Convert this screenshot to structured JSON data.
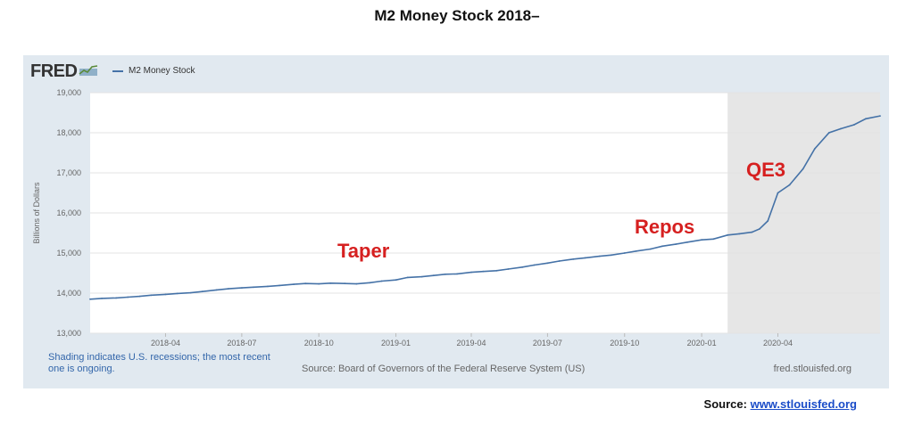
{
  "page_title": "M2 Money Stock 2018–",
  "fred": {
    "logo_text": "FRED",
    "logo_icon": "fred-chart-icon",
    "legend_label": "M2 Money Stock",
    "line_color": "#4572a7",
    "recession_color": "#e6e6e6",
    "footer_note": "Shading indicates U.S. recessions; the most recent one is ongoing.",
    "footer_source": "Source: Board of Governors of the Federal Reserve System (US)",
    "footer_url": "fred.stlouisfed.org"
  },
  "source_line": {
    "prefix": "Source:",
    "link_text": "www.stlouisfed.org"
  },
  "chart_data": {
    "type": "line",
    "title": "",
    "xlabel": "",
    "ylabel": "Billions of Dollars",
    "ylim": [
      13000,
      19000
    ],
    "yticks": [
      "13,000",
      "14,000",
      "15,000",
      "16,000",
      "17,000",
      "18,000",
      "19,000"
    ],
    "xticks": [
      "2018-04",
      "2018-07",
      "2018-10",
      "2019-01",
      "2019-04",
      "2019-07",
      "2019-10",
      "2020-01",
      "2020-04"
    ],
    "grid": true,
    "recession_shading": {
      "start": "2020-02",
      "end": "present"
    },
    "annotations": [
      {
        "text": "Taper",
        "color": "#d62020"
      },
      {
        "text": "Repos",
        "color": "#d62020"
      },
      {
        "text": "QE3",
        "color": "#d62020"
      }
    ],
    "series": [
      {
        "name": "M2 Money Stock",
        "x": [
          "2018-01-01",
          "2018-01-15",
          "2018-02-01",
          "2018-02-15",
          "2018-03-01",
          "2018-03-15",
          "2018-04-01",
          "2018-04-15",
          "2018-05-01",
          "2018-05-15",
          "2018-06-01",
          "2018-06-15",
          "2018-07-01",
          "2018-07-15",
          "2018-08-01",
          "2018-08-15",
          "2018-09-01",
          "2018-09-15",
          "2018-10-01",
          "2018-10-15",
          "2018-11-01",
          "2018-11-15",
          "2018-12-01",
          "2018-12-15",
          "2019-01-01",
          "2019-01-15",
          "2019-02-01",
          "2019-02-15",
          "2019-03-01",
          "2019-03-15",
          "2019-04-01",
          "2019-04-15",
          "2019-05-01",
          "2019-05-15",
          "2019-06-01",
          "2019-06-15",
          "2019-07-01",
          "2019-07-15",
          "2019-08-01",
          "2019-08-15",
          "2019-09-01",
          "2019-09-15",
          "2019-10-01",
          "2019-10-15",
          "2019-11-01",
          "2019-11-15",
          "2019-12-01",
          "2019-12-15",
          "2020-01-01",
          "2020-01-15",
          "2020-02-01",
          "2020-02-15",
          "2020-03-01",
          "2020-03-10",
          "2020-03-20",
          "2020-04-01",
          "2020-04-15",
          "2020-05-01",
          "2020-05-15",
          "2020-06-01",
          "2020-06-15",
          "2020-07-01",
          "2020-07-15",
          "2020-08-01"
        ],
        "values": [
          13850,
          13870,
          13880,
          13900,
          13920,
          13950,
          13970,
          13990,
          14010,
          14040,
          14080,
          14110,
          14130,
          14150,
          14170,
          14190,
          14220,
          14240,
          14230,
          14250,
          14240,
          14230,
          14260,
          14300,
          14330,
          14390,
          14410,
          14440,
          14470,
          14480,
          14520,
          14540,
          14560,
          14600,
          14650,
          14700,
          14750,
          14800,
          14850,
          14880,
          14920,
          14950,
          15000,
          15050,
          15100,
          15170,
          15220,
          15270,
          15330,
          15350,
          15450,
          15480,
          15520,
          15600,
          15800,
          16500,
          16700,
          17100,
          17600,
          18000,
          18100,
          18200,
          18350,
          18420
        ]
      }
    ]
  }
}
